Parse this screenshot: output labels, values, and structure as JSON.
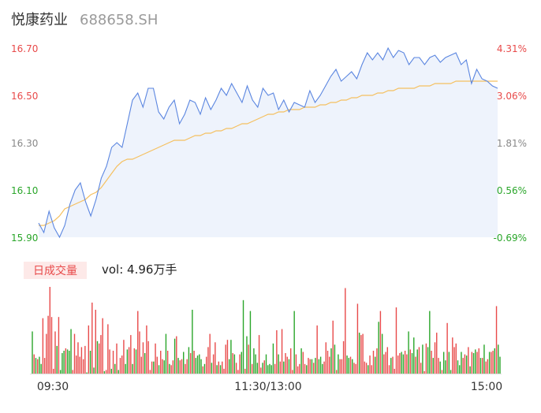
{
  "header": {
    "name": "悦康药业",
    "code": "688658.SH"
  },
  "volume": {
    "tag": "日成交量",
    "summary": "vol: 4.96万手"
  },
  "colors": {
    "up": "#e84a4a",
    "down": "#2aa62a",
    "price": "#5b86e0",
    "avg": "#f5c060",
    "fill": "#eef3fc",
    "axis_gray": "#888888"
  },
  "chart_data": {
    "type": "line",
    "ylim": [
      15.9,
      16.7
    ],
    "y_ticks_left": [
      "16.70",
      "16.50",
      "16.30",
      "16.10",
      "15.90"
    ],
    "y_ticks_right": [
      "4.31%",
      "3.06%",
      "1.81%",
      "0.56%",
      "-0.69%"
    ],
    "x_ticks": [
      "09:30",
      "11:30/13:00",
      "15:00"
    ],
    "series": [
      {
        "name": "price",
        "values": [
          15.96,
          15.92,
          16.01,
          15.94,
          15.9,
          15.95,
          16.04,
          16.1,
          16.13,
          16.05,
          15.99,
          16.06,
          16.15,
          16.2,
          16.28,
          16.3,
          16.28,
          16.38,
          16.48,
          16.51,
          16.45,
          16.53,
          16.53,
          16.43,
          16.4,
          16.45,
          16.48,
          16.38,
          16.42,
          16.48,
          16.47,
          16.42,
          16.49,
          16.44,
          16.48,
          16.53,
          16.5,
          16.55,
          16.51,
          16.47,
          16.54,
          16.48,
          16.45,
          16.53,
          16.5,
          16.51,
          16.44,
          16.48,
          16.43,
          16.47,
          16.46,
          16.45,
          16.52,
          16.47,
          16.5,
          16.54,
          16.58,
          16.61,
          16.56,
          16.58,
          16.6,
          16.57,
          16.63,
          16.68,
          16.65,
          16.68,
          16.65,
          16.7,
          16.66,
          16.69,
          16.68,
          16.63,
          16.66,
          16.66,
          16.63,
          16.66,
          16.67,
          16.64,
          16.66,
          16.67,
          16.68,
          16.63,
          16.65,
          16.55,
          16.61,
          16.57,
          16.56,
          16.54,
          16.53
        ]
      },
      {
        "name": "avg",
        "values": [
          15.95,
          15.95,
          15.96,
          15.97,
          15.99,
          16.02,
          16.03,
          16.04,
          16.05,
          16.06,
          16.08,
          16.09,
          16.11,
          16.14,
          16.17,
          16.2,
          16.22,
          16.23,
          16.23,
          16.24,
          16.25,
          16.26,
          16.27,
          16.28,
          16.29,
          16.3,
          16.31,
          16.31,
          16.31,
          16.32,
          16.33,
          16.33,
          16.34,
          16.34,
          16.35,
          16.35,
          16.36,
          16.36,
          16.37,
          16.38,
          16.38,
          16.39,
          16.4,
          16.41,
          16.42,
          16.42,
          16.43,
          16.43,
          16.44,
          16.44,
          16.44,
          16.45,
          16.45,
          16.45,
          16.46,
          16.46,
          16.47,
          16.47,
          16.48,
          16.48,
          16.49,
          16.49,
          16.5,
          16.5,
          16.5,
          16.51,
          16.51,
          16.52,
          16.52,
          16.53,
          16.53,
          16.53,
          16.53,
          16.54,
          16.54,
          16.54,
          16.55,
          16.55,
          16.55,
          16.55,
          16.56,
          16.56,
          16.56,
          16.56,
          16.56,
          16.56,
          16.56,
          16.56,
          16.56
        ]
      }
    ],
    "volume_bars": {
      "values": [
        35,
        16,
        13,
        12,
        14,
        8,
        46,
        13,
        33,
        48,
        72,
        47,
        4,
        35,
        23,
        47,
        3,
        17,
        19,
        21,
        20,
        19,
        37,
        3,
        33,
        15,
        26,
        14,
        22,
        12,
        23,
        1,
        40,
        19,
        59,
        5,
        53,
        27,
        25,
        32,
        46,
        2,
        3,
        41,
        20,
        4,
        19,
        8,
        25,
        3,
        13,
        15,
        28,
        8,
        20,
        22,
        32,
        8,
        21,
        20,
        52,
        35,
        14,
        26,
        17,
        40,
        27,
        3,
        10,
        10,
        25,
        14,
        7,
        19,
        12,
        11,
        33,
        19,
        8,
        7,
        11,
        29,
        31,
        13,
        11,
        12,
        18,
        8,
        12,
        22,
        17,
        53,
        19,
        13,
        15,
        16,
        12,
        6,
        8,
        14,
        22,
        33,
        9,
        16,
        26,
        7,
        10,
        7,
        10,
        4,
        24,
        28,
        12,
        28,
        17,
        16,
        9,
        3,
        16,
        18,
        61,
        4,
        31,
        24,
        52,
        8,
        21,
        16,
        9,
        32,
        5,
        9,
        11,
        16,
        7,
        8,
        7,
        25,
        8,
        36,
        16,
        10,
        37,
        10,
        17,
        14,
        12,
        21,
        3,
        52,
        16,
        6,
        8,
        21,
        18,
        8,
        7,
        13,
        12,
        12,
        9,
        13,
        40,
        12,
        14,
        8,
        10,
        26,
        19,
        14,
        21,
        44,
        24,
        3,
        16,
        12,
        12,
        27,
        71,
        15,
        13,
        14,
        12,
        9,
        8,
        58,
        34,
        32,
        33,
        10,
        9,
        7,
        15,
        7,
        19,
        14,
        21,
        43,
        52,
        33,
        16,
        18,
        22,
        7,
        13,
        14,
        4,
        55,
        15,
        17,
        18,
        16,
        19,
        16,
        35,
        20,
        17,
        30,
        14,
        20,
        22,
        9,
        24,
        2,
        25,
        22,
        52,
        19,
        13,
        26,
        34,
        13,
        10,
        3,
        18,
        11,
        42,
        18,
        3,
        30,
        22,
        25,
        11,
        7,
        18,
        13,
        16,
        15,
        22,
        6,
        18,
        17,
        20,
        18,
        21,
        13,
        13,
        24,
        10,
        12,
        18,
        18,
        19,
        21,
        56,
        24,
        14
      ],
      "dirs": [
        "d",
        "u",
        "d",
        "u",
        "d",
        "d",
        "u",
        "u",
        "u",
        "u",
        "u",
        "u",
        "u",
        "u",
        "d",
        "u",
        "d",
        "d",
        "d",
        "u",
        "d",
        "d",
        "d",
        "u",
        "u",
        "u",
        "u",
        "u",
        "u",
        "u",
        "u",
        "d",
        "u",
        "d",
        "u",
        "d",
        "u",
        "d",
        "u",
        "u",
        "u",
        "d",
        "u",
        "u",
        "u",
        "d",
        "u",
        "d",
        "u",
        "d",
        "u",
        "u",
        "u",
        "d",
        "d",
        "u",
        "u",
        "d",
        "u",
        "d",
        "u",
        "u",
        "u",
        "u",
        "d",
        "u",
        "u",
        "u",
        "u",
        "d",
        "u",
        "u",
        "d",
        "u",
        "u",
        "d",
        "d",
        "u",
        "d",
        "u",
        "u",
        "d",
        "u",
        "d",
        "u",
        "u",
        "d",
        "u",
        "u",
        "d",
        "u",
        "d",
        "u",
        "d",
        "d",
        "d",
        "d",
        "u",
        "d",
        "u",
        "u",
        "u",
        "d",
        "u",
        "u",
        "d",
        "u",
        "d",
        "u",
        "u",
        "u",
        "u",
        "d",
        "d",
        "u",
        "d",
        "u",
        "u",
        "u",
        "d",
        "d",
        "u",
        "d",
        "u",
        "d",
        "u",
        "d",
        "d",
        "d",
        "u",
        "u",
        "d",
        "u",
        "d",
        "d",
        "d",
        "d",
        "d",
        "u",
        "u",
        "d",
        "u",
        "u",
        "d",
        "u",
        "u",
        "d",
        "u",
        "u",
        "d",
        "u",
        "u",
        "u",
        "d",
        "u",
        "u",
        "d",
        "u",
        "u",
        "d",
        "u",
        "d",
        "u",
        "d",
        "d",
        "d",
        "u",
        "u",
        "u",
        "u",
        "d",
        "u",
        "d",
        "u",
        "d",
        "u",
        "u",
        "u",
        "u",
        "d",
        "d",
        "u",
        "d",
        "u",
        "u",
        "u",
        "d",
        "u",
        "u",
        "u",
        "u",
        "d",
        "u",
        "u",
        "u",
        "d",
        "u",
        "d",
        "u",
        "d",
        "u",
        "u",
        "u",
        "u",
        "d",
        "u",
        "u",
        "u",
        "u",
        "u",
        "d",
        "d",
        "u",
        "u",
        "d",
        "u",
        "d",
        "d",
        "u",
        "d",
        "u",
        "u",
        "d",
        "u",
        "u",
        "d",
        "d",
        "u",
        "d",
        "u",
        "u",
        "u",
        "d",
        "u",
        "d",
        "d",
        "u",
        "d",
        "d",
        "u",
        "u",
        "u",
        "d",
        "d",
        "d",
        "u",
        "u",
        "d",
        "u",
        "d",
        "u",
        "d",
        "d",
        "u",
        "u",
        "d",
        "u",
        "d",
        "u",
        "u",
        "d",
        "u",
        "u",
        "d",
        "u"
      ]
    }
  }
}
